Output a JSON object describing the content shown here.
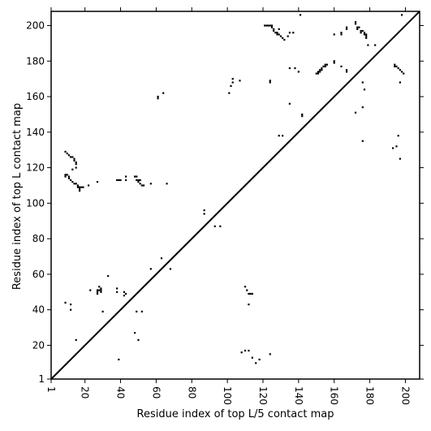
{
  "chart_data": {
    "type": "scatter",
    "xlabel": "Residue index of top L/5 contact map",
    "ylabel": "Residue index of top L contact map",
    "xlim": [
      1,
      208
    ],
    "ylim": [
      1,
      208
    ],
    "xticks": [
      1,
      20,
      40,
      60,
      80,
      100,
      120,
      140,
      160,
      180,
      200
    ],
    "yticks": [
      1,
      20,
      40,
      60,
      80,
      100,
      120,
      140,
      160,
      180,
      200
    ],
    "color": "#000000",
    "x": [
      9,
      10,
      11,
      12,
      13,
      14,
      14,
      15,
      15,
      15,
      9,
      9,
      10,
      11,
      11,
      12,
      13,
      14,
      15,
      16,
      16,
      17,
      18,
      19,
      17,
      17,
      13,
      22,
      27,
      38,
      39,
      40,
      43,
      43,
      48,
      49,
      49,
      50,
      51,
      50,
      51,
      52,
      53,
      57,
      66,
      61,
      61,
      64,
      87,
      87,
      93,
      96,
      57,
      63,
      68,
      23,
      27,
      27,
      27,
      28,
      28,
      29,
      29,
      29,
      30,
      33,
      38,
      38,
      42,
      43,
      42,
      49,
      52,
      48,
      50,
      39,
      15,
      9,
      12,
      12,
      121,
      122,
      123,
      124,
      125,
      125,
      126,
      126,
      127,
      128,
      128,
      129,
      130,
      131,
      132,
      129,
      135,
      134,
      137,
      141,
      135,
      138,
      140,
      142,
      142,
      135,
      129,
      131,
      124,
      124,
      103,
      103,
      107,
      101,
      102,
      150,
      151,
      151,
      152,
      152,
      153,
      153,
      154,
      155,
      155,
      156,
      160,
      160,
      160,
      164,
      164,
      167,
      167,
      164,
      167,
      167,
      172,
      172,
      173,
      173,
      174,
      175,
      175,
      176,
      177,
      177,
      178,
      178,
      178,
      179,
      183,
      176,
      177,
      176,
      176,
      172,
      193,
      195,
      194,
      194,
      195,
      196,
      197,
      198,
      199,
      197,
      196,
      197,
      198,
      108,
      110,
      112,
      110,
      111,
      112,
      113,
      114,
      112,
      114,
      116,
      118,
      124
    ],
    "y": [
      129,
      128,
      127,
      126,
      126,
      125,
      124,
      123,
      122,
      120,
      116,
      115,
      116,
      115,
      114,
      113,
      112,
      111,
      111,
      110,
      109,
      109,
      109,
      109,
      108,
      107,
      119,
      110,
      112,
      113,
      113,
      113,
      113,
      115,
      115,
      115,
      113,
      113,
      113,
      112,
      111,
      110,
      110,
      111,
      111,
      159,
      160,
      162,
      96,
      94,
      87,
      87,
      63,
      69,
      63,
      51,
      51,
      50,
      49,
      51,
      53,
      52,
      50,
      51,
      39,
      59,
      52,
      50,
      50,
      49,
      48,
      39,
      39,
      27,
      23,
      12,
      23,
      44,
      43,
      40,
      200,
      200,
      200,
      200,
      200,
      199,
      198,
      197,
      196,
      196,
      195,
      195,
      194,
      193,
      192,
      198,
      196,
      194,
      196,
      206,
      176,
      176,
      174,
      150,
      149,
      156,
      138,
      138,
      169,
      168,
      170,
      168,
      169,
      162,
      166,
      173,
      174,
      173,
      175,
      174,
      176,
      175,
      177,
      177,
      178,
      178,
      180,
      179,
      195,
      196,
      195,
      198,
      199,
      177,
      175,
      174,
      201,
      202,
      199,
      198,
      199,
      197,
      196,
      197,
      196,
      195,
      195,
      194,
      193,
      189,
      189,
      168,
      164,
      154,
      135,
      151,
      131,
      132,
      178,
      177,
      177,
      176,
      175,
      174,
      173,
      168,
      138,
      125,
      206,
      16,
      17,
      17,
      53,
      51,
      49,
      49,
      49,
      43,
      13,
      10,
      12,
      15
    ]
  }
}
